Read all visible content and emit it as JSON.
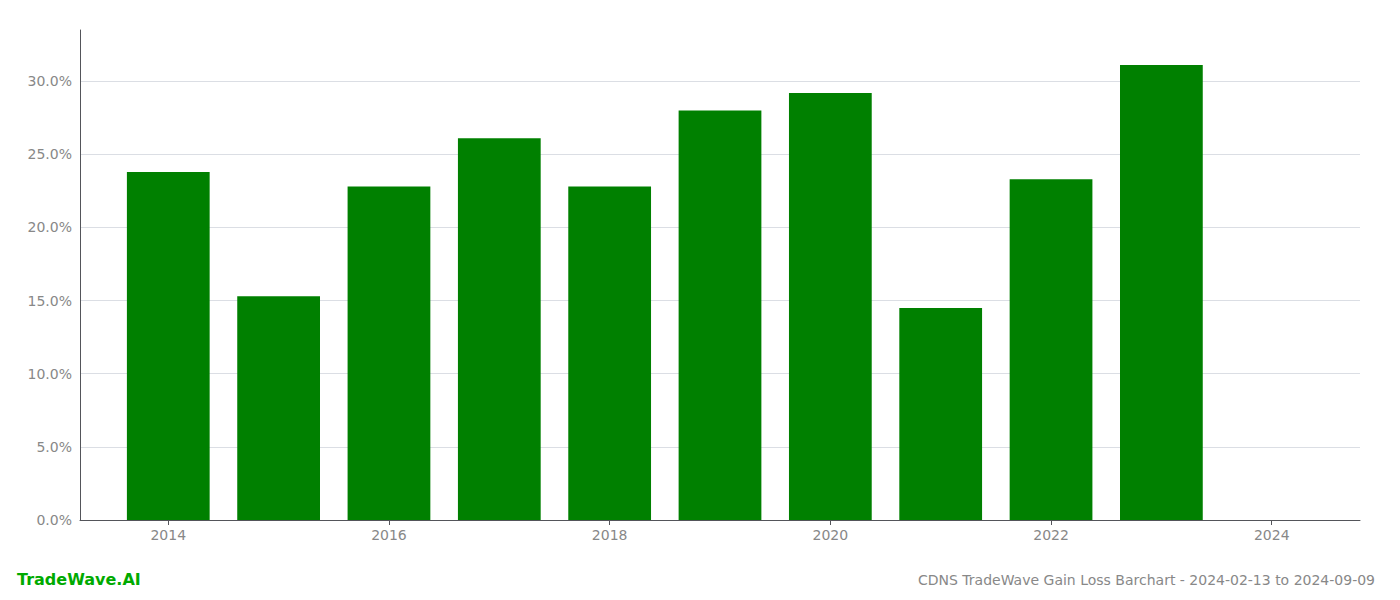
{
  "chart_data": {
    "type": "bar",
    "title": "CDNS TradeWave Gain Loss Barchart - 2024-02-13 to 2024-09-09",
    "annotations": [
      {
        "text": "TradeWave.AI",
        "color": "#00aa00"
      }
    ],
    "x": [
      2014,
      2015,
      2016,
      2017,
      2018,
      2019,
      2020,
      2021,
      2022,
      2023
    ],
    "values": [
      0.238,
      0.153,
      0.228,
      0.261,
      0.228,
      0.28,
      0.292,
      0.145,
      0.233,
      0.311
    ],
    "color": "#008000",
    "xlim": [
      2013.2,
      2024.8
    ],
    "xticks": [
      2014,
      2016,
      2018,
      2020,
      2022,
      2024
    ],
    "ylim": [
      0,
      0.335
    ],
    "yticks": [
      {
        "value": 0.0,
        "label": "0.0%"
      },
      {
        "value": 0.05,
        "label": "5.0%"
      },
      {
        "value": 0.1,
        "label": "10.0%"
      },
      {
        "value": 0.15,
        "label": "15.0%"
      },
      {
        "value": 0.2,
        "label": "20.0%"
      },
      {
        "value": 0.25,
        "label": "25.0%"
      },
      {
        "value": 0.3,
        "label": "30.0%"
      }
    ],
    "grid": true
  }
}
